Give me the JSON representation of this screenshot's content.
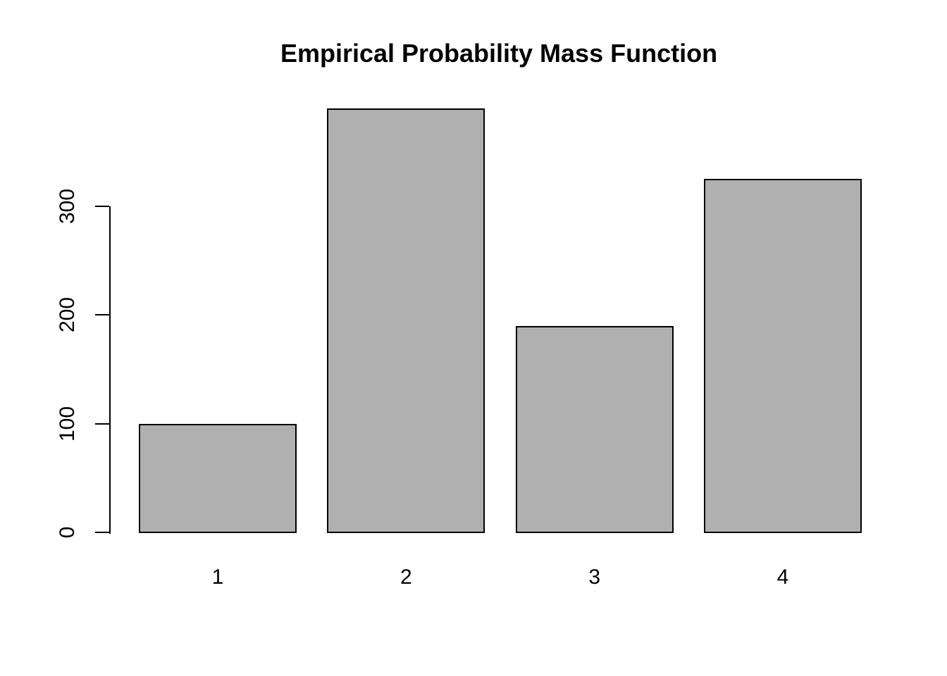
{
  "page": {
    "background": "#ffffff",
    "text_color": "#000000"
  },
  "chart_data": {
    "type": "bar",
    "title": "Empirical Probability Mass Function",
    "xlabel": "",
    "ylabel": "",
    "categories": [
      "1",
      "2",
      "3",
      "4"
    ],
    "values": [
      100,
      390,
      190,
      325
    ],
    "yticks": [
      0,
      100,
      200,
      300
    ],
    "ylim": [
      0,
      390
    ],
    "grid": false,
    "legend": false,
    "bar_fill_color": "#b0b0b0",
    "bar_border_color": "#000000",
    "axis_color": "#000000"
  }
}
